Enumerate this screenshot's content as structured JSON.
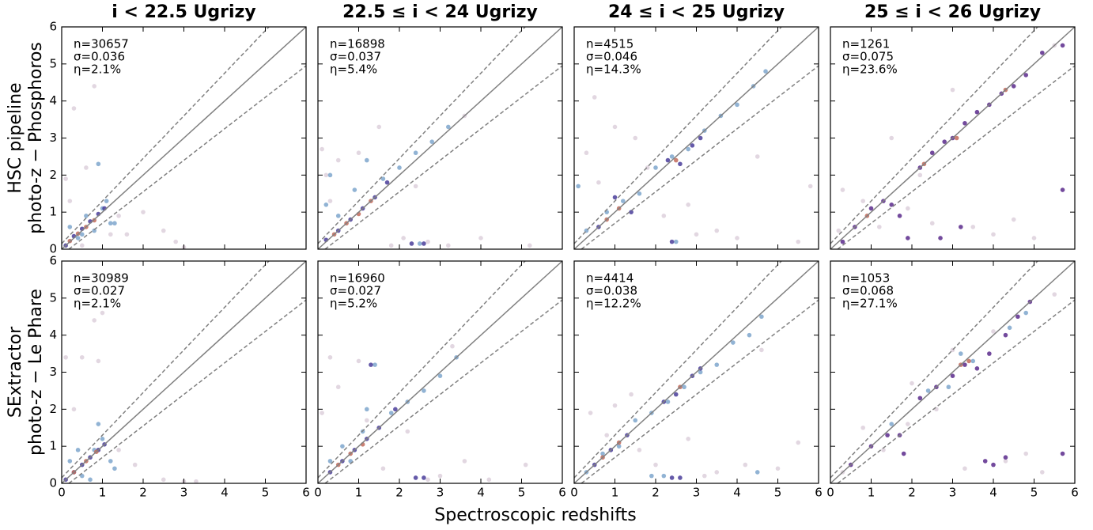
{
  "figure": {
    "xlabel": "Spectroscopic redshifts"
  },
  "chart_data": [
    {
      "type": "scatter",
      "title": "i < 22.5 Ugrizy",
      "ylabel": [
        "HSC pipeline",
        "photo-z − Phosphoros"
      ],
      "annotations": [
        "n=30657",
        "σ=0.036",
        "η=2.1%"
      ],
      "xlim": [
        0,
        6
      ],
      "ylim": [
        0,
        6
      ],
      "xticks": [
        0,
        1,
        2,
        3,
        4,
        5,
        6
      ],
      "yticks": [
        0,
        1,
        2,
        3,
        4,
        5,
        6
      ],
      "outlier_limit": 0.15,
      "series": [
        {
          "color": "#ddd0dc",
          "x": [
            0.1,
            0.3,
            0.5,
            1.4,
            1.6,
            2.0,
            2.5,
            3.0,
            0.2,
            0.8,
            1.2,
            2.8,
            0.6
          ],
          "y": [
            1.9,
            3.8,
            0.1,
            0.9,
            0.4,
            1.0,
            0.5,
            0.05,
            1.3,
            4.4,
            0.4,
            0.2,
            2.2
          ]
        },
        {
          "color": "#7ea6cc",
          "x": [
            0.2,
            0.4,
            0.6,
            0.8,
            1.0,
            1.2,
            0.9,
            1.3,
            0.5,
            1.1
          ],
          "y": [
            0.6,
            0.3,
            0.9,
            0.5,
            1.1,
            0.7,
            2.3,
            0.7,
            0.4,
            1.3
          ]
        },
        {
          "color": "#4a3d9a",
          "x": [
            0.1,
            0.3,
            0.5,
            0.7,
            0.9,
            1.05
          ],
          "y": [
            0.1,
            0.35,
            0.55,
            0.75,
            0.95,
            1.1
          ]
        },
        {
          "color": "#c26a5a",
          "x": [
            0.2,
            0.4,
            0.6,
            0.8
          ],
          "y": [
            0.22,
            0.42,
            0.6,
            0.78
          ]
        }
      ]
    },
    {
      "type": "scatter",
      "title": "22.5 ≤ i < 24 Ugrizy",
      "annotations": [
        "n=16898",
        "σ=0.037",
        "η=5.4%"
      ],
      "xlim": [
        0,
        6
      ],
      "ylim": [
        0,
        6
      ],
      "xticks": [
        0,
        1,
        2,
        3,
        4,
        5,
        6
      ],
      "yticks": [
        0,
        1,
        2,
        3,
        4,
        5,
        6
      ],
      "outlier_limit": 0.15,
      "series": [
        {
          "color": "#ddd0dc",
          "x": [
            0.1,
            0.2,
            0.5,
            1.0,
            1.5,
            2.1,
            2.7,
            3.2,
            4.0,
            5.2,
            3.6,
            0.3,
            1.8,
            2.4
          ],
          "y": [
            2.7,
            2.0,
            2.4,
            2.6,
            3.3,
            0.3,
            0.2,
            0.1,
            0.3,
            0.1,
            3.6,
            1.3,
            0.1,
            1.7
          ]
        },
        {
          "color": "#7ea6cc",
          "x": [
            0.2,
            0.5,
            0.9,
            1.2,
            1.6,
            2.0,
            2.4,
            2.8,
            3.2,
            0.3,
            2.5
          ],
          "y": [
            1.2,
            0.9,
            1.6,
            2.4,
            1.9,
            2.2,
            2.6,
            2.9,
            3.3,
            2.0,
            0.15
          ]
        },
        {
          "color": "#4a3d9a",
          "x": [
            0.2,
            0.5,
            0.8,
            1.1,
            1.4,
            1.7,
            2.3,
            2.6
          ],
          "y": [
            0.25,
            0.5,
            0.8,
            1.1,
            1.4,
            1.8,
            0.15,
            0.15
          ]
        },
        {
          "color": "#c26a5a",
          "x": [
            0.4,
            0.7,
            1.0,
            1.3
          ],
          "y": [
            0.4,
            0.7,
            0.95,
            1.3
          ]
        }
      ]
    },
    {
      "type": "scatter",
      "title": "24 ≤ i < 25 Ugrizy",
      "annotations": [
        "n=4515",
        "σ=0.046",
        "η=14.3%"
      ],
      "xlim": [
        0,
        6
      ],
      "ylim": [
        0,
        6
      ],
      "xticks": [
        0,
        1,
        2,
        3,
        4,
        5,
        6
      ],
      "yticks": [
        0,
        1,
        2,
        3,
        4,
        5,
        6
      ],
      "outlier_limit": 0.15,
      "series": [
        {
          "color": "#ddd0dc",
          "x": [
            0.3,
            0.6,
            1.0,
            1.8,
            2.2,
            3.5,
            4.0,
            4.5,
            5.5,
            0.5,
            1.5,
            2.8,
            3.0,
            5.8
          ],
          "y": [
            2.6,
            1.8,
            3.3,
            2.2,
            0.9,
            0.5,
            0.3,
            2.5,
            0.2,
            4.1,
            3.0,
            1.2,
            0.4,
            1.7
          ]
        },
        {
          "color": "#7ea6cc",
          "x": [
            0.3,
            0.8,
            1.2,
            1.6,
            2.0,
            2.4,
            2.8,
            3.2,
            3.6,
            4.0,
            4.4,
            4.7,
            2.5,
            0.1
          ],
          "y": [
            0.5,
            1.0,
            1.3,
            1.5,
            2.2,
            2.5,
            2.7,
            3.2,
            3.6,
            3.9,
            4.4,
            4.8,
            0.2,
            1.7
          ]
        },
        {
          "color": "#4a3d9a",
          "x": [
            0.6,
            1.0,
            1.4,
            2.3,
            2.6,
            2.9,
            3.1,
            2.4
          ],
          "y": [
            0.6,
            1.4,
            1.0,
            2.4,
            2.3,
            2.8,
            3.0,
            0.2
          ]
        },
        {
          "color": "#c26a5a",
          "x": [
            0.8,
            1.1,
            2.5
          ],
          "y": [
            0.8,
            1.1,
            2.4
          ]
        }
      ]
    },
    {
      "type": "scatter",
      "title": "25 ≤ i < 26 Ugrizy",
      "annotations": [
        "n=1261",
        "σ=0.075",
        "η=23.6%"
      ],
      "xlim": [
        0,
        6
      ],
      "ylim": [
        0,
        6
      ],
      "xticks": [
        0,
        1,
        2,
        3,
        4,
        5,
        6
      ],
      "yticks": [
        0,
        1,
        2,
        3,
        4,
        5,
        6
      ],
      "outlier_limit": 0.15,
      "series": [
        {
          "color": "#ddd0dc",
          "x": [
            0.3,
            0.8,
            1.2,
            1.9,
            2.5,
            3.5,
            4.0,
            4.5,
            5.0,
            0.2,
            1.5,
            2.2,
            5.5,
            3.0
          ],
          "y": [
            1.6,
            1.3,
            0.6,
            1.1,
            0.7,
            0.6,
            0.4,
            0.8,
            0.3,
            0.5,
            3.0,
            2.0,
            5.5,
            4.3
          ]
        },
        {
          "color": "#5b2a8c",
          "x": [
            0.3,
            0.6,
            1.0,
            1.3,
            1.5,
            1.7,
            2.2,
            2.5,
            2.8,
            3.0,
            3.3,
            3.6,
            3.9,
            4.2,
            4.5,
            4.8,
            5.2,
            5.7,
            2.7,
            1.9,
            3.2,
            5.7
          ],
          "y": [
            0.2,
            0.6,
            1.1,
            1.3,
            1.2,
            0.9,
            2.2,
            2.6,
            2.9,
            3.0,
            3.4,
            3.7,
            3.9,
            4.2,
            4.4,
            4.7,
            5.3,
            5.5,
            0.3,
            0.3,
            0.6,
            1.6
          ]
        },
        {
          "color": "#c26a5a",
          "x": [
            0.9,
            2.3,
            3.1,
            4.3
          ],
          "y": [
            0.9,
            2.3,
            3.0,
            4.3
          ]
        }
      ]
    },
    {
      "type": "scatter",
      "ylabel": [
        "SExtractor",
        "photo-z − Le Phare"
      ],
      "annotations": [
        "n=30989",
        "σ=0.027",
        "η=2.1%"
      ],
      "xlim": [
        0,
        6
      ],
      "ylim": [
        0,
        6
      ],
      "xticks": [
        0,
        1,
        2,
        3,
        4,
        5,
        6
      ],
      "yticks": [
        0,
        1,
        2,
        3,
        4,
        5,
        6
      ],
      "outlier_limit": 0.15,
      "series": [
        {
          "color": "#ddd0dc",
          "x": [
            0.1,
            0.5,
            0.8,
            0.9,
            1.4,
            1.8,
            2.5,
            3.0,
            0.3,
            1.0,
            3.3
          ],
          "y": [
            3.4,
            3.4,
            4.4,
            3.3,
            0.9,
            0.5,
            0.1,
            0.05,
            2.0,
            4.6,
            0.05
          ]
        },
        {
          "color": "#7ea6cc",
          "x": [
            0.2,
            0.5,
            0.8,
            1.0,
            1.2,
            0.9,
            1.3,
            0.4,
            0.7
          ],
          "y": [
            0.6,
            0.2,
            0.9,
            1.2,
            0.6,
            1.6,
            0.4,
            0.9,
            0.1
          ]
        },
        {
          "color": "#4a3d9a",
          "x": [
            0.1,
            0.3,
            0.5,
            0.7,
            0.9,
            1.05
          ],
          "y": [
            0.1,
            0.3,
            0.5,
            0.7,
            0.9,
            1.05
          ]
        },
        {
          "color": "#c26a5a",
          "x": [
            0.3,
            0.6,
            0.85
          ],
          "y": [
            0.3,
            0.6,
            0.85
          ]
        }
      ]
    },
    {
      "type": "scatter",
      "annotations": [
        "n=16960",
        "σ=0.027",
        "η=5.2%"
      ],
      "xlim": [
        0,
        6
      ],
      "ylim": [
        0,
        6
      ],
      "xticks": [
        0,
        1,
        2,
        3,
        4,
        5,
        6
      ],
      "yticks": [
        0,
        1,
        2,
        3,
        4,
        5,
        6
      ],
      "outlier_limit": 0.15,
      "series": [
        {
          "color": "#ddd0dc",
          "x": [
            0.1,
            0.5,
            1.0,
            1.6,
            2.2,
            3.0,
            3.6,
            4.2,
            5.1,
            0.3,
            1.2,
            2.7,
            3.3
          ],
          "y": [
            1.9,
            2.6,
            3.3,
            0.4,
            1.4,
            0.2,
            0.6,
            0.1,
            0.5,
            3.4,
            1.7,
            0.1,
            3.7
          ]
        },
        {
          "color": "#7ea6cc",
          "x": [
            0.3,
            0.6,
            1.1,
            1.4,
            1.8,
            2.2,
            2.6,
            3.0,
            3.4,
            1.2,
            0.8
          ],
          "y": [
            0.6,
            1.0,
            1.4,
            3.2,
            1.9,
            2.2,
            2.5,
            2.9,
            3.4,
            2.0,
            0.6
          ]
        },
        {
          "color": "#4a3d9a",
          "x": [
            0.3,
            0.6,
            0.9,
            1.2,
            1.5,
            1.9,
            2.4,
            2.6,
            1.3
          ],
          "y": [
            0.3,
            0.6,
            0.9,
            1.2,
            1.5,
            2.0,
            0.15,
            0.15,
            3.2
          ]
        },
        {
          "color": "#c26a5a",
          "x": [
            0.5,
            0.8,
            1.1
          ],
          "y": [
            0.5,
            0.8,
            1.05
          ]
        }
      ]
    },
    {
      "type": "scatter",
      "annotations": [
        "n=4414",
        "σ=0.038",
        "η=12.2%"
      ],
      "xlim": [
        0,
        6
      ],
      "ylim": [
        0,
        6
      ],
      "xticks": [
        0,
        1,
        2,
        3,
        4,
        5,
        6
      ],
      "yticks": [
        0,
        1,
        2,
        3,
        4,
        5,
        6
      ],
      "outlier_limit": 0.15,
      "series": [
        {
          "color": "#ddd0dc",
          "x": [
            0.4,
            1.0,
            1.6,
            2.0,
            2.8,
            3.5,
            4.2,
            5.0,
            5.5,
            0.8,
            1.4,
            3.2,
            4.6
          ],
          "y": [
            1.9,
            2.1,
            0.9,
            0.5,
            1.2,
            0.3,
            0.5,
            0.4,
            1.1,
            1.3,
            2.4,
            0.2,
            3.6
          ]
        },
        {
          "color": "#7ea6cc",
          "x": [
            0.3,
            0.7,
            1.1,
            1.5,
            1.9,
            2.3,
            2.7,
            3.1,
            3.5,
            3.9,
            4.3,
            4.6,
            1.9,
            4.5,
            2.2
          ],
          "y": [
            0.3,
            0.8,
            1.0,
            1.7,
            1.9,
            2.2,
            2.6,
            3.0,
            3.2,
            3.8,
            4.0,
            4.5,
            0.2,
            0.3,
            0.2
          ]
        },
        {
          "color": "#4a3d9a",
          "x": [
            0.5,
            0.9,
            1.3,
            2.2,
            2.5,
            2.9,
            3.1,
            2.4,
            2.6
          ],
          "y": [
            0.5,
            0.9,
            1.3,
            2.2,
            2.4,
            2.9,
            3.1,
            0.15,
            0.15
          ]
        },
        {
          "color": "#c26a5a",
          "x": [
            0.7,
            1.1,
            2.6
          ],
          "y": [
            0.7,
            1.1,
            2.6
          ]
        }
      ]
    },
    {
      "type": "scatter",
      "annotations": [
        "n=1053",
        "σ=0.068",
        "η=27.1%"
      ],
      "xlim": [
        0,
        6
      ],
      "ylim": [
        0,
        6
      ],
      "xticks": [
        0,
        1,
        2,
        3,
        4,
        5,
        6
      ],
      "yticks": [
        0,
        1,
        2,
        3,
        4,
        5,
        6
      ],
      "outlier_limit": 0.15,
      "series": [
        {
          "color": "#ddd0dc",
          "x": [
            0.3,
            0.8,
            1.3,
            1.9,
            2.6,
            3.3,
            4.3,
            4.8,
            5.5,
            2.0,
            3.0,
            4.0,
            5.2
          ],
          "y": [
            0.3,
            1.5,
            0.9,
            1.6,
            2.0,
            0.4,
            0.6,
            0.8,
            5.1,
            2.7,
            3.6,
            4.1,
            0.3
          ]
        },
        {
          "color": "#7ea6cc",
          "x": [
            1.5,
            2.4,
            3.5,
            4.4,
            4.8,
            3.2,
            2.9
          ],
          "y": [
            1.6,
            2.5,
            3.3,
            4.2,
            4.6,
            3.5,
            2.6
          ]
        },
        {
          "color": "#5b2a8c",
          "x": [
            0.5,
            1.0,
            1.4,
            1.8,
            2.2,
            2.6,
            3.0,
            3.3,
            3.6,
            3.9,
            4.3,
            4.6,
            4.9,
            3.8,
            4.0,
            4.3,
            5.7,
            1.7
          ],
          "y": [
            0.5,
            1.0,
            1.3,
            0.8,
            2.3,
            2.6,
            2.9,
            3.2,
            3.1,
            3.5,
            4.0,
            4.5,
            4.9,
            0.6,
            0.5,
            0.7,
            0.8,
            1.3
          ]
        },
        {
          "color": "#c26a5a",
          "x": [
            3.2,
            3.4
          ],
          "y": [
            3.2,
            3.3
          ]
        }
      ]
    }
  ]
}
